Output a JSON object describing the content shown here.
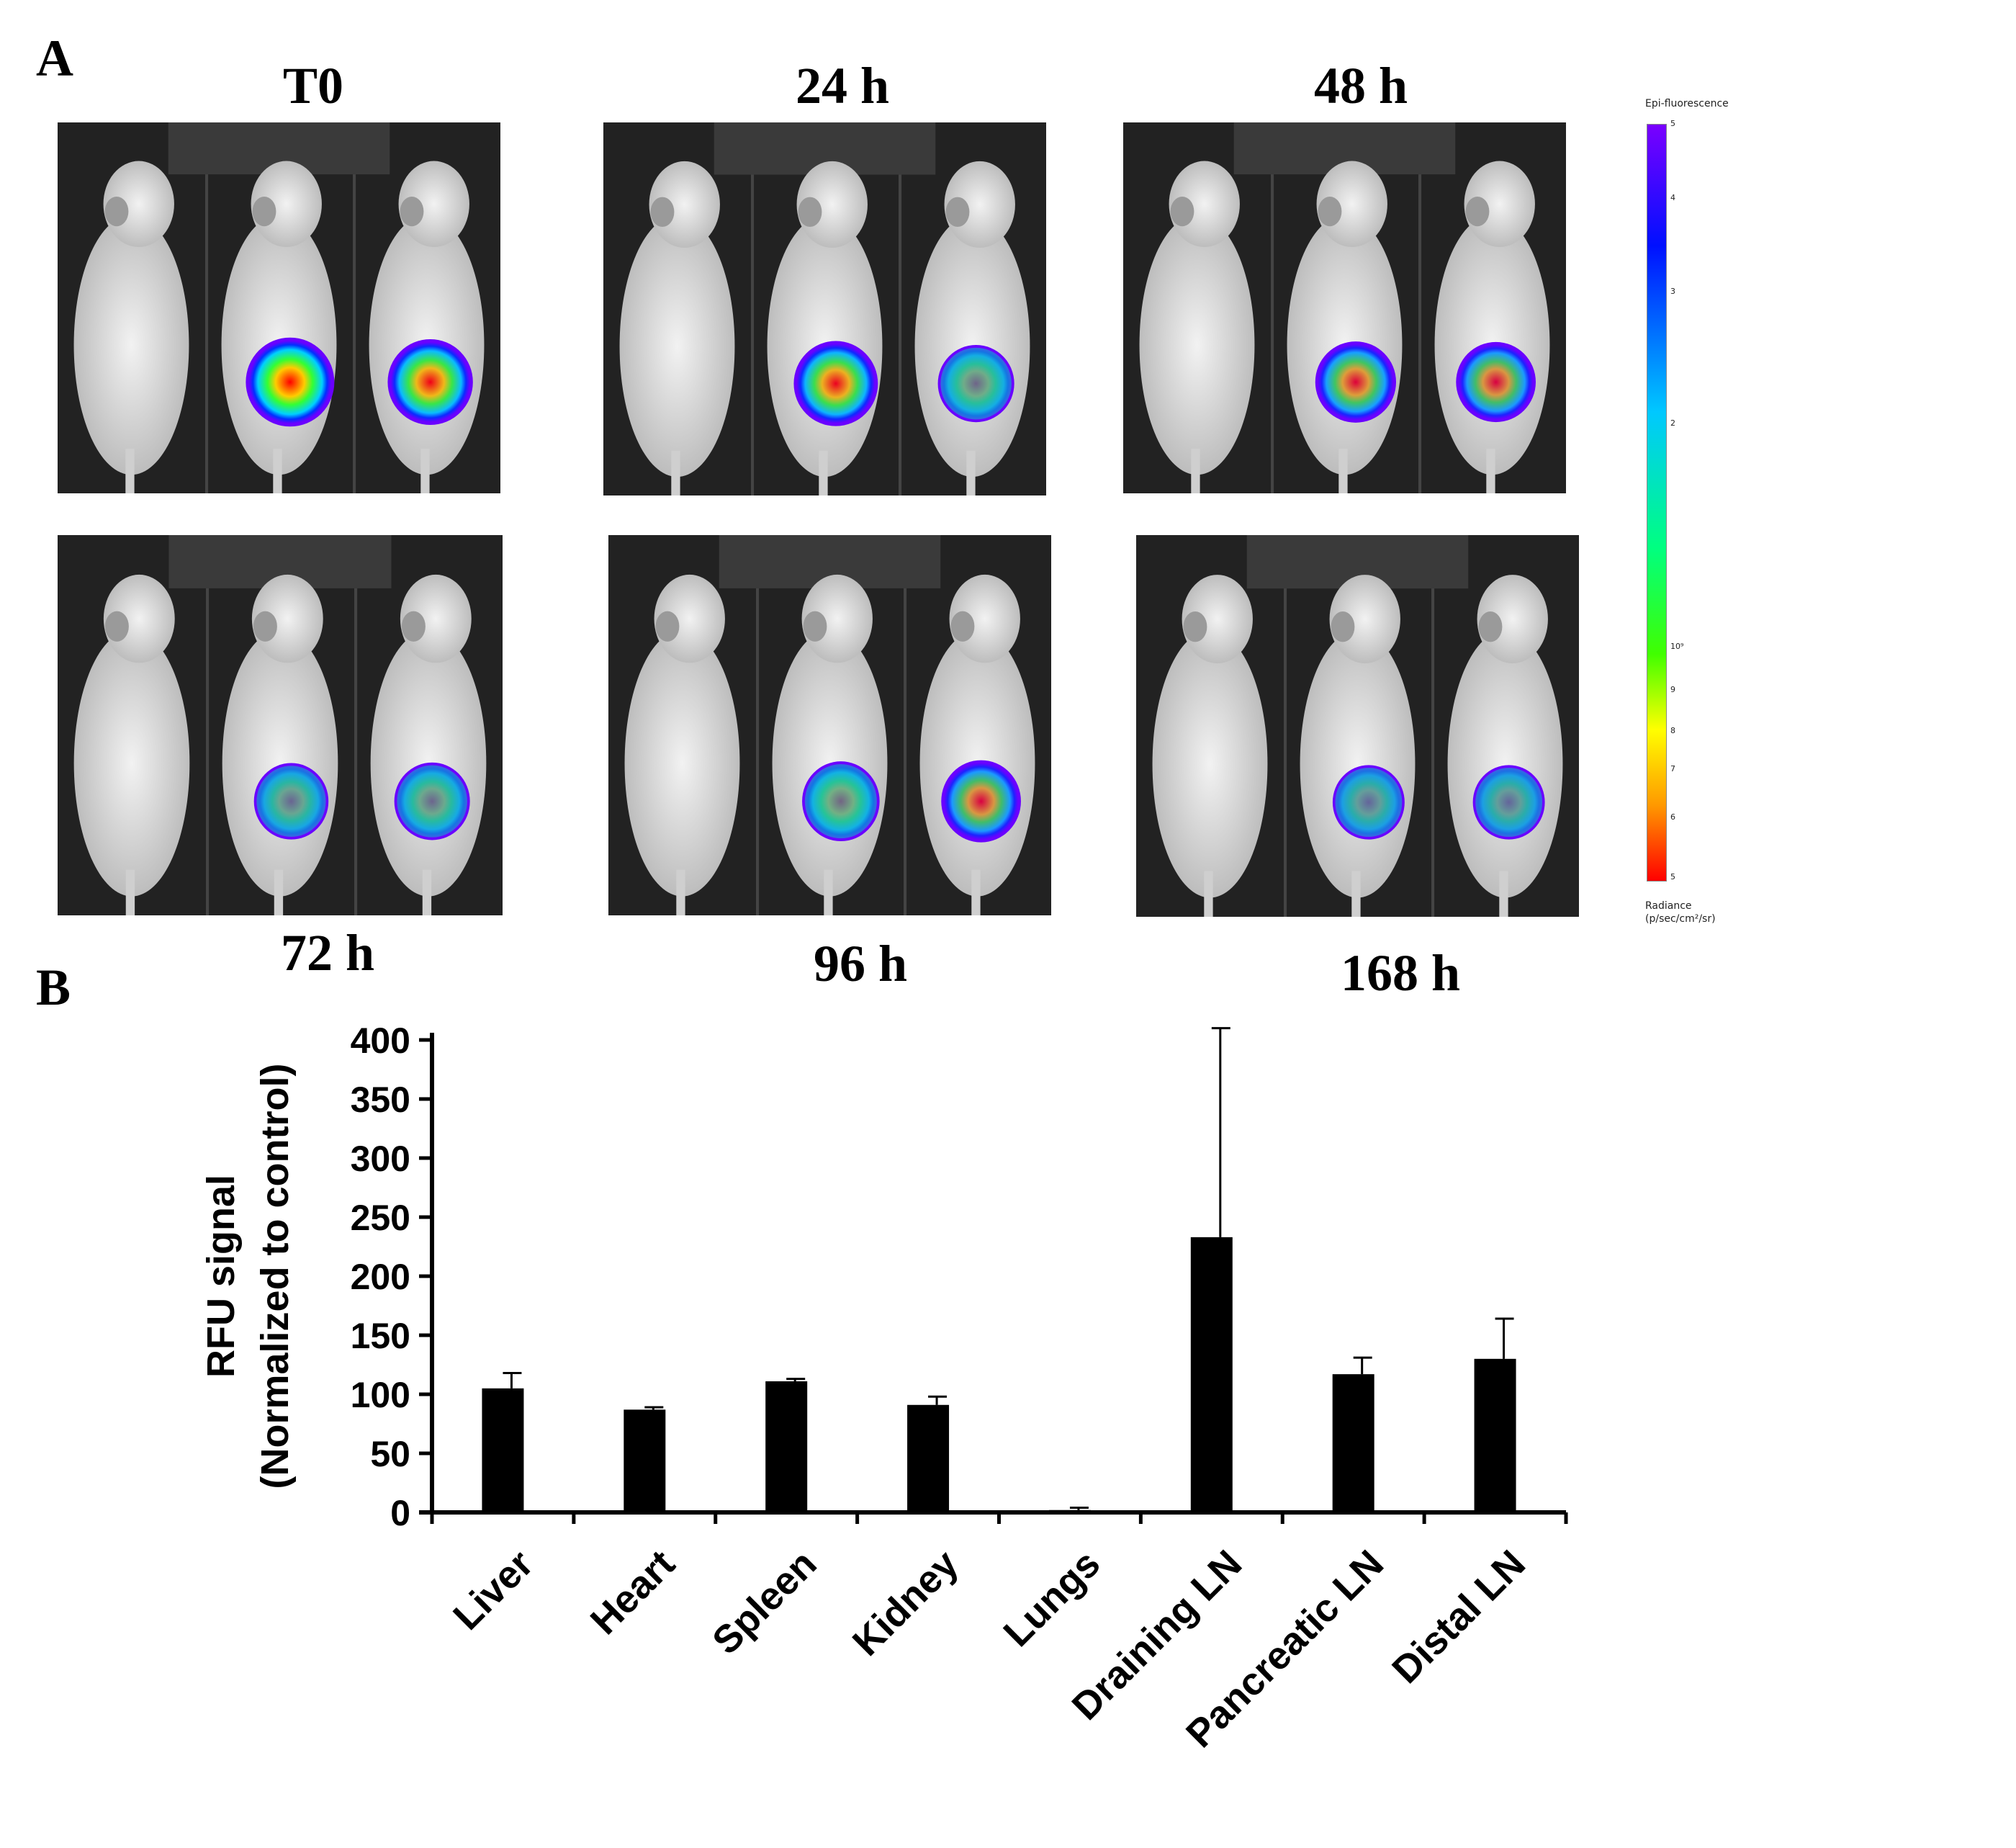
{
  "figure": {
    "panel_a_letter": "A",
    "panel_b_letter": "B",
    "timepoints": [
      "T0",
      "24 h",
      "48 h",
      "72 h",
      "96 h",
      "168 h"
    ],
    "signal_levels": [
      [
        0,
        1.0,
        0.85
      ],
      [
        0,
        0.8,
        0.45
      ],
      [
        0,
        0.65,
        0.6
      ],
      [
        0,
        0.35,
        0.4
      ],
      [
        0,
        0.5,
        0.6
      ],
      [
        0,
        0.25,
        0.25
      ]
    ],
    "colorbar": {
      "title": "Epi-fluorescence",
      "foot_line1": "Radiance",
      "foot_line2": "(p/sec/cm²/sr)",
      "ticks": [
        "5",
        "4",
        "3",
        "2",
        "10⁹",
        "9",
        "8",
        "7",
        "6",
        "5"
      ]
    }
  },
  "chart_data": {
    "type": "bar",
    "categories": [
      "Liver",
      "Heart",
      "Spleen",
      "Kidney",
      "Lungs",
      "Draining LN",
      "Pancreatic LN",
      "Distal LN"
    ],
    "values": [
      105,
      87,
      111,
      91,
      2,
      233,
      117,
      130
    ],
    "errors": [
      13,
      2,
      2,
      7,
      2,
      177,
      14,
      34
    ],
    "ylabel_line1": "RFU signal",
    "ylabel_line2": "(Normalized to control)",
    "ylim": [
      0,
      400
    ],
    "yticks": [
      "0",
      "50",
      "100",
      "150",
      "200",
      "250",
      "300",
      "350",
      "400"
    ],
    "bar_color": "#000000"
  }
}
